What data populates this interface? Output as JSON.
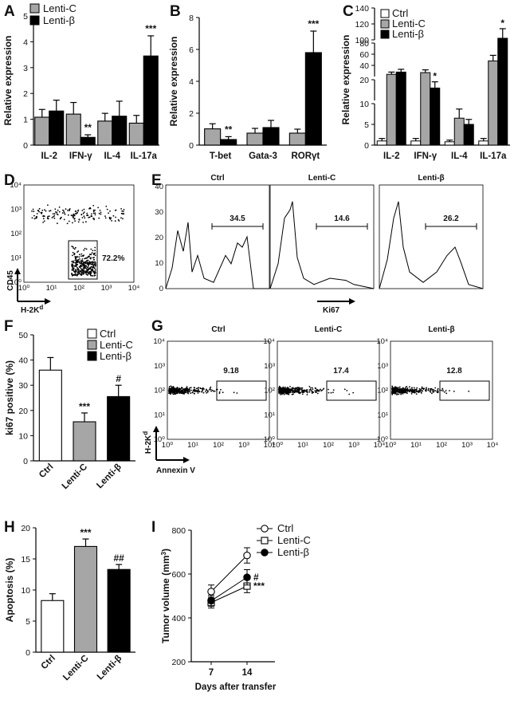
{
  "panel_labels": {
    "A": "A",
    "B": "B",
    "C": "C",
    "D": "D",
    "E": "E",
    "F": "F",
    "G": "G",
    "H": "H",
    "I": "I"
  },
  "colors": {
    "ctrl": "#ffffff",
    "lenti_c": "#a6a6a6",
    "lenti_b": "#000000",
    "axis": "#000000"
  },
  "chart_data": [
    {
      "id": "A",
      "type": "bar",
      "ylabel": "Relative expression",
      "ylim": [
        0,
        5
      ],
      "yticks": [
        0,
        1,
        2,
        3,
        4,
        5
      ],
      "categories": [
        "IL-2",
        "IFN-γ",
        "IL-4",
        "IL-17a"
      ],
      "legend": [
        "Lenti-C",
        "Lenti-β"
      ],
      "series": [
        {
          "name": "Lenti-C",
          "values": [
            1.08,
            1.2,
            0.93,
            0.85
          ],
          "err": [
            0.3,
            0.45,
            0.3,
            0.3
          ]
        },
        {
          "name": "Lenti-β",
          "values": [
            1.32,
            0.3,
            1.12,
            3.45
          ],
          "err": [
            0.42,
            0.1,
            0.58,
            0.78
          ]
        }
      ],
      "annotations": [
        {
          "category": "IFN-γ",
          "series": "Lenti-β",
          "text": "**"
        },
        {
          "category": "IL-17a",
          "series": "Lenti-β",
          "text": "***"
        }
      ]
    },
    {
      "id": "B",
      "type": "bar",
      "ylabel": "Relative expression",
      "ylim": [
        0,
        8
      ],
      "yticks": [
        0,
        2,
        4,
        6,
        8
      ],
      "categories": [
        "T-bet",
        "Gata-3",
        "RORγt"
      ],
      "series": [
        {
          "name": "Lenti-C",
          "values": [
            1.02,
            0.75,
            0.75
          ],
          "err": [
            0.32,
            0.3,
            0.25
          ]
        },
        {
          "name": "Lenti-β",
          "values": [
            0.35,
            1.1,
            5.8
          ],
          "err": [
            0.18,
            0.45,
            1.35
          ]
        }
      ],
      "annotations": [
        {
          "category": "T-bet",
          "series": "Lenti-β",
          "text": "**"
        },
        {
          "category": "RORγt",
          "series": "Lenti-β",
          "text": "***"
        }
      ]
    },
    {
      "id": "C",
      "type": "bar",
      "ylabel": "Relative expression",
      "broken_axis": true,
      "yticks": [
        0,
        5,
        10,
        20,
        40,
        60,
        80,
        100,
        120,
        140
      ],
      "categories": [
        "IL-2",
        "IFN-γ",
        "IL-4",
        "IL-17a"
      ],
      "legend": [
        "Ctrl",
        "Lenti-C",
        "Lenti-β"
      ],
      "series": [
        {
          "name": "Ctrl",
          "values": [
            1.0,
            1.0,
            0.8,
            1.0
          ],
          "err": [
            0.6,
            0.6,
            0.4,
            0.6
          ]
        },
        {
          "name": "Lenti-C",
          "values": [
            24,
            27,
            6.5,
            48
          ],
          "err": [
            4,
            5,
            2.2,
            10
          ]
        },
        {
          "name": "Lenti-β",
          "values": [
            28,
            16,
            5,
            102
          ],
          "err": [
            5,
            3,
            1.2,
            12
          ]
        }
      ],
      "annotations": [
        {
          "category": "IFN-γ",
          "series": "Lenti-β",
          "text": "*"
        },
        {
          "category": "IL-17a",
          "series": "Lenti-β",
          "text": "*"
        }
      ]
    },
    {
      "id": "F",
      "type": "bar",
      "ylabel": "ki67 positive (%)",
      "ylim": [
        0,
        50
      ],
      "yticks": [
        0,
        10,
        20,
        30,
        40,
        50
      ],
      "categories": [
        "Ctrl",
        "Lenti-C",
        "Lenti-β"
      ],
      "legend": [
        "Ctrl",
        "Lenti-C",
        "Lenti-β"
      ],
      "values": [
        36,
        15.5,
        25.5
      ],
      "err": [
        5,
        3.5,
        4.5
      ],
      "annotations": [
        {
          "category": "Lenti-C",
          "text": "***"
        },
        {
          "category": "Lenti-β",
          "text": "#"
        }
      ]
    },
    {
      "id": "H",
      "type": "bar",
      "ylabel": "Apoptosis (%)",
      "ylim": [
        0,
        20
      ],
      "yticks": [
        0,
        5,
        10,
        15,
        20
      ],
      "categories": [
        "Ctrl",
        "Lenti-C",
        "Lenti-β"
      ],
      "values": [
        8.3,
        17,
        13.3
      ],
      "err": [
        1.1,
        1.2,
        0.8
      ],
      "annotations": [
        {
          "category": "Lenti-C",
          "text": "***"
        },
        {
          "category": "Lenti-β",
          "text": "##"
        }
      ]
    },
    {
      "id": "I",
      "type": "line",
      "ylabel": "Tumor volume (mm",
      "ylabel_sup": "3",
      "ylabel_end": ")",
      "xlabel": "Days after transfer",
      "ylim": [
        200,
        800
      ],
      "yticks": [
        200,
        400,
        600,
        800
      ],
      "x": [
        7,
        14
      ],
      "legend": [
        "Ctrl",
        "Lenti-C",
        "Lenti-β"
      ],
      "series": [
        {
          "name": "Ctrl",
          "marker": "open-circle",
          "values": [
            520,
            685
          ],
          "err": [
            30,
            35
          ]
        },
        {
          "name": "Lenti-C",
          "marker": "open-square",
          "values": [
            470,
            545
          ],
          "err": [
            25,
            30
          ]
        },
        {
          "name": "Lenti-β",
          "marker": "filled-circle",
          "values": [
            478,
            585
          ],
          "err": [
            25,
            35
          ]
        }
      ],
      "annotations": [
        {
          "series": "Lenti-β",
          "text": "#"
        },
        {
          "series": "Lenti-C",
          "text": "***"
        }
      ]
    }
  ],
  "flow": {
    "axis_ticks": [
      "10⁰",
      "10¹",
      "10²",
      "10³",
      "10⁴"
    ],
    "D": {
      "gate_value": "72.2%",
      "y_label": "CD45",
      "x_label": "H-2K",
      "x_sup": "d"
    },
    "E": {
      "x_label": "Ki67",
      "panels": [
        {
          "title": "Ctrl",
          "value": "34.5"
        },
        {
          "title": "Lenti-C",
          "value": "14.6"
        },
        {
          "title": "Lenti-β",
          "value": "26.2"
        }
      ],
      "yticks": [
        "0",
        "10",
        "20",
        "30",
        "40"
      ]
    },
    "G": {
      "y_label": "H-2K",
      "y_sup": "d",
      "x_label": "Annexin V",
      "panels": [
        {
          "title": "Ctrl",
          "value": "9.18"
        },
        {
          "title": "Lenti-C",
          "value": "17.4"
        },
        {
          "title": "Lenti-β",
          "value": "12.8"
        }
      ]
    }
  }
}
